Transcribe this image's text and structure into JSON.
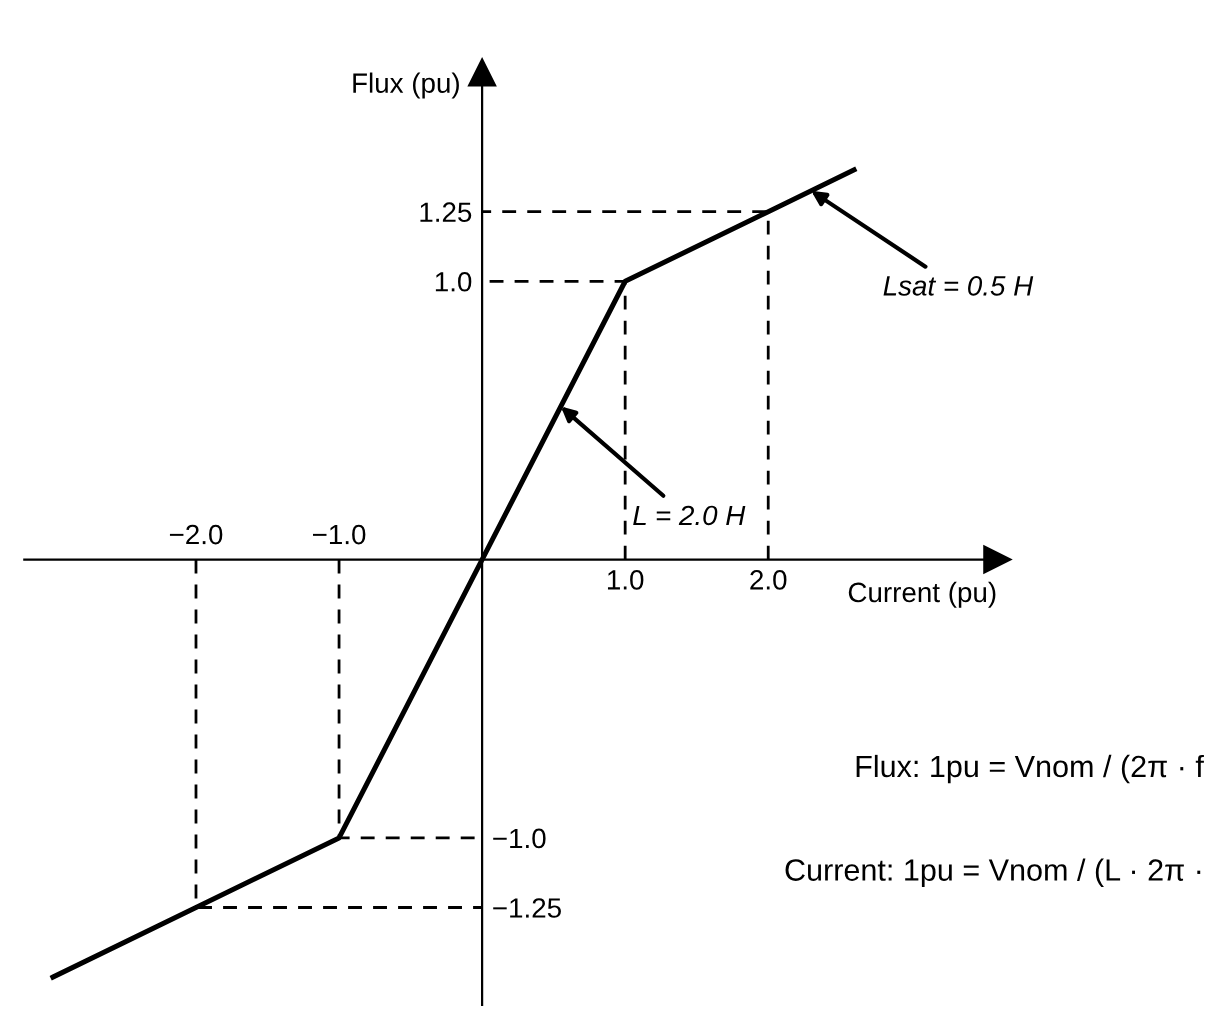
{
  "chart_data": {
    "type": "line",
    "xlabel": "Current (pu)",
    "ylabel": "Flux (pu)",
    "xlim": [
      -3.2,
      3.6
    ],
    "ylim": [
      -1.6,
      1.75
    ],
    "xticks": [
      {
        "value": 1,
        "label": "1.0"
      },
      {
        "value": 2,
        "label": "2.0"
      }
    ],
    "x2lim": [
      -3.2,
      3.6
    ],
    "x2ticks": [
      {
        "value": -2,
        "label": "−2.0"
      },
      {
        "value": -1,
        "label": "−1.0"
      }
    ],
    "yticks": [
      {
        "value": 1,
        "label": "1.0"
      },
      {
        "value": 1.25,
        "label": "1.25"
      }
    ],
    "y2lim": [
      -1.6,
      1.75
    ],
    "y2ticks": [
      {
        "value": -1.25,
        "label": "−1.25"
      },
      {
        "value": -1,
        "label": "−1.0"
      }
    ],
    "series": [
      {
        "color": "#000000",
        "line_style": "solid",
        "x": [
          -3.0,
          -2,
          -1,
          0,
          1,
          2,
          2.6
        ],
        "values": [
          -1.5,
          -1.25,
          -1,
          0,
          1,
          1.25,
          1.4
        ]
      },
      {
        "color": "#000000",
        "line_style": "dashed",
        "x": [
          1,
          1,
          0,
          null,
          2,
          2,
          0
        ],
        "values": [
          0,
          1,
          1,
          null,
          0,
          1.25,
          1.25
        ]
      },
      {
        "color": "#000000",
        "line_style": "dashed",
        "x": [
          -1,
          -1,
          0,
          null,
          -2,
          -2,
          0
        ],
        "values": [
          0,
          -1,
          -1,
          null,
          0,
          -1.25,
          -1.25
        ]
      }
    ],
    "annotations": [
      {
        "text": "Lsat = 0.5 H",
        "x": 2.3,
        "y": 1.325
      },
      {
        "text": "L = 2.0 H",
        "x": 0.55,
        "y": 0.55
      },
      "Flux: 1pu = Vnom / (2π · f",
      "Current: 1pu = Vnom / (L · 2π ·"
    ]
  }
}
